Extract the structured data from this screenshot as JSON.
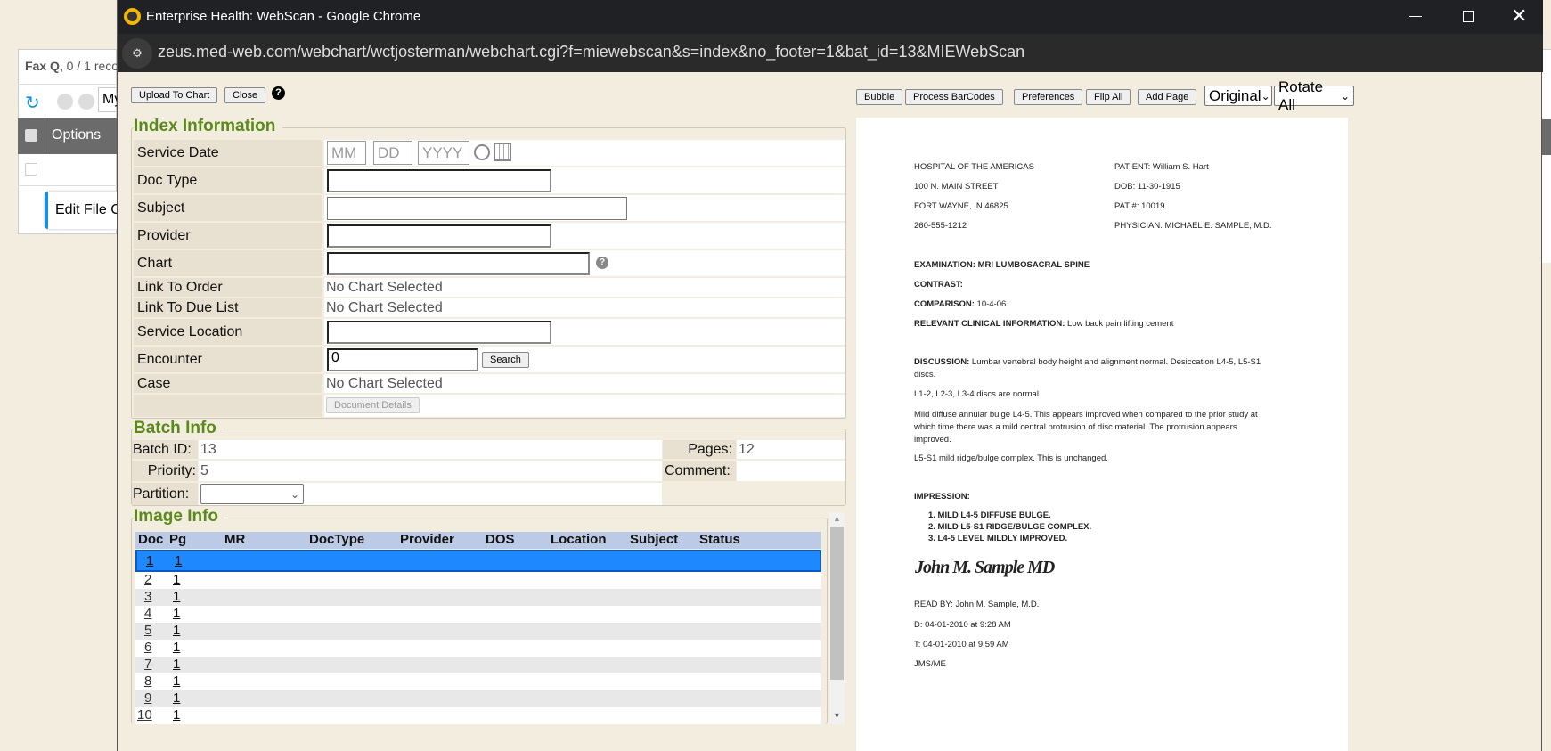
{
  "background": {
    "title_bold": "Fax Q,",
    "title_rest": " 0 / 1 reco",
    "search_partial": "My",
    "options_header": "Options",
    "edit_partial": "Edit File C"
  },
  "window": {
    "title": "Enterprise Health: WebScan - Google Chrome",
    "url": "zeus.med-web.com/webchart/wctjosterman/webchart.cgi?f=miewebscan&s=index&no_footer=1&bat_id=13&MIEWebScan"
  },
  "toolbar": {
    "upload": "Upload To Chart",
    "close": "Close",
    "help": "?"
  },
  "index": {
    "legend": "Index Information",
    "service_date": {
      "label": "Service Date",
      "mm": "MM",
      "dd": "DD",
      "yyyy": "YYYY"
    },
    "doc_type": "Doc Type",
    "subject": "Subject",
    "provider": "Provider",
    "chart": "Chart",
    "link_order": {
      "label": "Link To Order",
      "value": "No Chart Selected"
    },
    "link_due": {
      "label": "Link To Due List",
      "value": "No Chart Selected"
    },
    "service_location": "Service Location",
    "encounter": {
      "label": "Encounter",
      "value": "0",
      "search": "Search"
    },
    "case": {
      "label": "Case",
      "value": "No Chart Selected"
    },
    "doc_details": "Document Details"
  },
  "batch": {
    "legend": "Batch Info",
    "batch_id_label": "Batch ID:",
    "batch_id": "13",
    "priority_label": "Priority:",
    "priority": "5",
    "partition_label": "Partition:",
    "pages_label": "Pages:",
    "pages": "12",
    "comment_label": "Comment:",
    "comment": ""
  },
  "image": {
    "legend": "Image Info",
    "columns": [
      "Doc",
      "Pg",
      "MR",
      "DocType",
      "Provider",
      "DOS",
      "Location",
      "Subject",
      "Status"
    ],
    "rows": [
      [
        "1",
        "1"
      ],
      [
        "2",
        "1"
      ],
      [
        "3",
        "1"
      ],
      [
        "4",
        "1"
      ],
      [
        "5",
        "1"
      ],
      [
        "6",
        "1"
      ],
      [
        "7",
        "1"
      ],
      [
        "8",
        "1"
      ],
      [
        "9",
        "1"
      ],
      [
        "10",
        "1"
      ]
    ],
    "selected_row": 0
  },
  "viewer": {
    "bubble": "Bubble",
    "barcodes": "Process BarCodes",
    "prefs": "Preferences",
    "flip": "Flip All",
    "add": "Add Page",
    "orientation": "Original",
    "rotate": "Rotate All"
  },
  "document": {
    "h1": "HOSPITAL OF THE AMERICAS",
    "h2": "100 N. MAIN STREET",
    "h3": "FORT WAYNE, IN  46825",
    "h4": "260-555-1212",
    "p1": "PATIENT: William S. Hart",
    "p2": "DOB: 11-30-1915",
    "p3": "PAT #: 10019",
    "p4": "PHYSICIAN: MICHAEL E. SAMPLE, M.D.",
    "exam": "EXAMINATION:  MRI LUMBOSACRAL SPINE",
    "contrast": "CONTRAST:",
    "comparison_label": "COMPARISON:",
    "comparison": " 10-4-06",
    "clinical_label": "RELEVANT CLINICAL INFORMATION:",
    "clinical": "  Low back pain lifting cement",
    "discussion_label": "DISCUSSION:",
    "discussion1": " Lumbar vertebral body height and alignment normal. Desiccation L4-5, L5-S1",
    "discussion2": "discs.",
    "l1": "L1-2, L2-3, L3-4 discs are normal.",
    "mild1": "Mild diffuse annular bulge L4-5. This appears improved when compared to the prior study at",
    "mild2": "which time there was a mild central protrusion of disc material. The protrusion appears",
    "mild3": "improved.",
    "l5": "L5-S1 mild ridge/bulge complex. This is unchanged.",
    "impression": "IMPRESSION:",
    "imp": [
      "1.   MILD L4-5 DIFFUSE BULGE.",
      "2.   MILD L5-S1 RIDGE/BULGE COMPLEX.",
      "3.   L4-5 LEVEL MILDLY IMPROVED."
    ],
    "signature": "John M. Sample MD",
    "read_by": "READ BY: John M. Sample, M.D.",
    "d": "D: 04-01-2010 at 9:28 AM",
    "t": "T: 04-01-2010 at 9:59 AM",
    "jms": "JMS/ME"
  }
}
